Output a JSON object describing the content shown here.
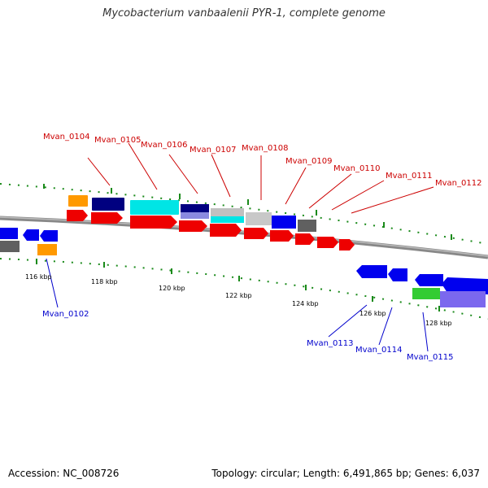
{
  "title": "Mycobacterium vanbaalenii PYR-1, complete genome",
  "footer": {
    "accession": "Accession: NC_008726",
    "stats": "Topology: circular; Length: 6,491,865 bp; Genes: 6,037"
  },
  "scale_labels": [
    "116 kbp",
    "118 kbp",
    "120 kbp",
    "122 kbp",
    "124 kbp",
    "126 kbp",
    "128 kbp"
  ],
  "top_gene_labels": [
    "Mvan_0104",
    "Mvan_0105",
    "Mvan_0106",
    "Mvan_0107",
    "Mvan_0108",
    "Mvan_0109",
    "Mvan_0110",
    "Mvan_0111",
    "Mvan_0112"
  ],
  "bottom_gene_labels": [
    "Mvan_0102",
    "Mvan_0113",
    "Mvan_0114",
    "Mvan_0115"
  ],
  "colors": {
    "top_label": "#cc0000",
    "bottom_label": "#0000cc",
    "tick": "#1a8a1a",
    "backbone": "#888888"
  }
}
